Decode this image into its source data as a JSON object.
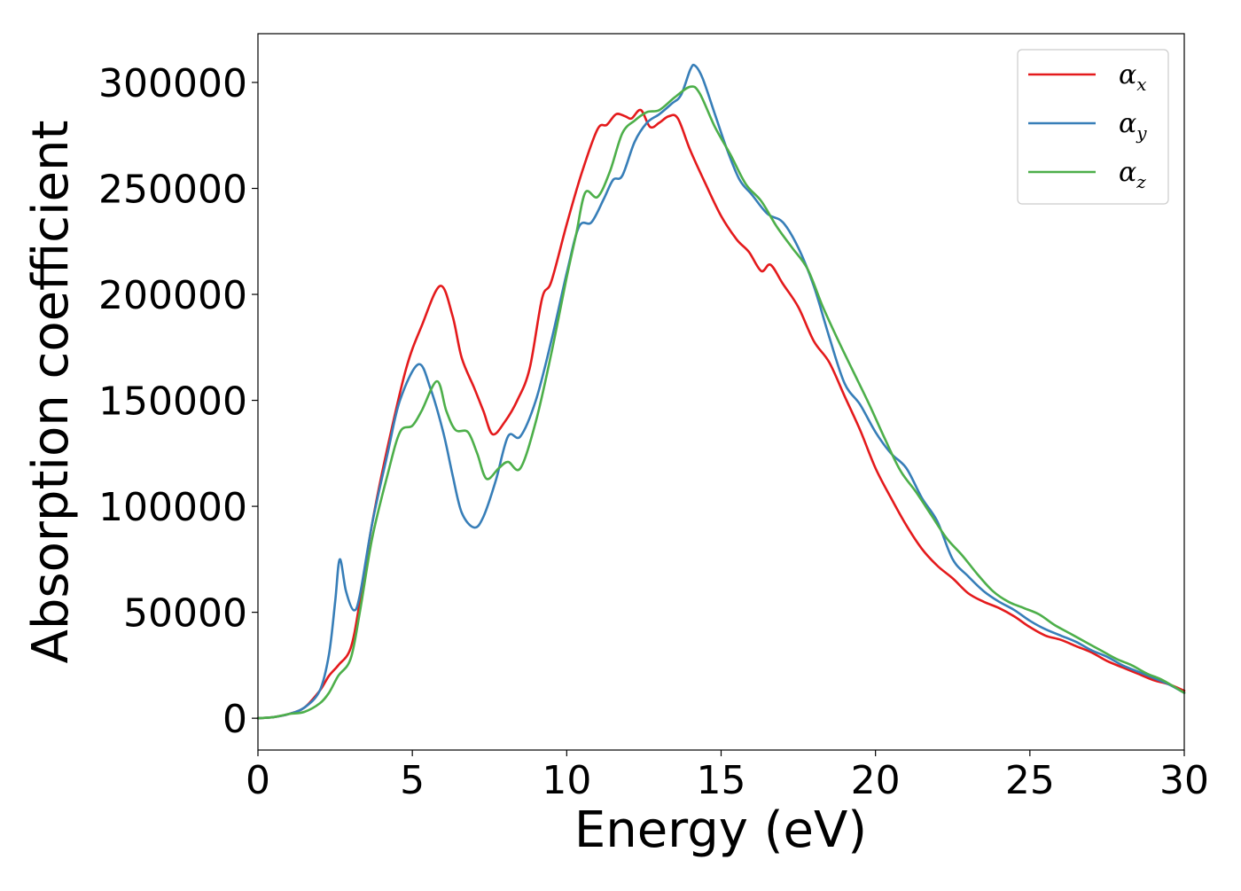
{
  "chart_data": {
    "type": "line",
    "title": "",
    "xlabel": "Energy (eV)",
    "ylabel": "Absorption coefficient",
    "xlim": [
      0,
      30
    ],
    "ylim": [
      -15000,
      323000
    ],
    "x_ticks": [
      0,
      5,
      10,
      15,
      20,
      25,
      30
    ],
    "y_ticks": [
      0,
      50000,
      100000,
      150000,
      200000,
      250000,
      300000
    ],
    "grid": false,
    "legend_position": "top-right",
    "series": [
      {
        "name": "α_x",
        "legend_main": "α",
        "legend_sub": "x",
        "color": "#e41a1c",
        "points": [
          [
            0,
            0
          ],
          [
            0.5,
            500
          ],
          [
            1.0,
            2000
          ],
          [
            1.5,
            5000
          ],
          [
            2.0,
            13000
          ],
          [
            2.3,
            20000
          ],
          [
            2.6,
            25000
          ],
          [
            3.0,
            33000
          ],
          [
            3.3,
            55000
          ],
          [
            3.7,
            92000
          ],
          [
            4.2,
            128000
          ],
          [
            4.8,
            165000
          ],
          [
            5.3,
            185000
          ],
          [
            5.9,
            204000
          ],
          [
            6.3,
            190000
          ],
          [
            6.6,
            170000
          ],
          [
            7.0,
            156000
          ],
          [
            7.3,
            145000
          ],
          [
            7.6,
            134000
          ],
          [
            8.0,
            140000
          ],
          [
            8.4,
            150000
          ],
          [
            8.8,
            165000
          ],
          [
            9.2,
            198000
          ],
          [
            9.5,
            206000
          ],
          [
            10.0,
            233000
          ],
          [
            10.5,
            258000
          ],
          [
            11.0,
            278000
          ],
          [
            11.3,
            280000
          ],
          [
            11.6,
            285000
          ],
          [
            11.9,
            284000
          ],
          [
            12.1,
            283000
          ],
          [
            12.4,
            287000
          ],
          [
            12.7,
            279000
          ],
          [
            13.0,
            281000
          ],
          [
            13.3,
            284000
          ],
          [
            13.6,
            283000
          ],
          [
            14.0,
            268000
          ],
          [
            14.5,
            252000
          ],
          [
            15.0,
            237000
          ],
          [
            15.5,
            226000
          ],
          [
            15.9,
            220000
          ],
          [
            16.3,
            211000
          ],
          [
            16.6,
            214000
          ],
          [
            17.0,
            205000
          ],
          [
            17.5,
            194000
          ],
          [
            18.0,
            178000
          ],
          [
            18.5,
            168000
          ],
          [
            19.0,
            152000
          ],
          [
            19.5,
            136000
          ],
          [
            20.0,
            118000
          ],
          [
            20.5,
            104000
          ],
          [
            21.0,
            91000
          ],
          [
            21.5,
            80000
          ],
          [
            22.0,
            72000
          ],
          [
            22.5,
            66000
          ],
          [
            23.0,
            59000
          ],
          [
            23.5,
            55000
          ],
          [
            24.0,
            52000
          ],
          [
            24.5,
            48000
          ],
          [
            25.0,
            43000
          ],
          [
            25.5,
            39000
          ],
          [
            26.0,
            37000
          ],
          [
            26.5,
            34000
          ],
          [
            27.0,
            31000
          ],
          [
            27.5,
            27000
          ],
          [
            28.0,
            24000
          ],
          [
            28.5,
            21000
          ],
          [
            29.0,
            18000
          ],
          [
            29.5,
            16000
          ],
          [
            30.0,
            13000
          ]
        ]
      },
      {
        "name": "α_y",
        "legend_main": "α",
        "legend_sub": "y",
        "color": "#377eb8",
        "points": [
          [
            0,
            0
          ],
          [
            0.5,
            500
          ],
          [
            1.0,
            2000
          ],
          [
            1.5,
            5000
          ],
          [
            2.0,
            13000
          ],
          [
            2.3,
            30000
          ],
          [
            2.5,
            55000
          ],
          [
            2.65,
            75000
          ],
          [
            2.85,
            60000
          ],
          [
            3.1,
            51000
          ],
          [
            3.3,
            58000
          ],
          [
            3.7,
            92000
          ],
          [
            4.2,
            125000
          ],
          [
            4.6,
            150000
          ],
          [
            5.2,
            167000
          ],
          [
            5.6,
            155000
          ],
          [
            6.0,
            135000
          ],
          [
            6.3,
            115000
          ],
          [
            6.6,
            97000
          ],
          [
            7.0,
            90000
          ],
          [
            7.3,
            95000
          ],
          [
            7.7,
            112000
          ],
          [
            8.1,
            133000
          ],
          [
            8.5,
            133000
          ],
          [
            9.0,
            150000
          ],
          [
            9.5,
            178000
          ],
          [
            10.0,
            210000
          ],
          [
            10.4,
            232000
          ],
          [
            10.8,
            234000
          ],
          [
            11.2,
            245000
          ],
          [
            11.5,
            254000
          ],
          [
            11.8,
            256000
          ],
          [
            12.2,
            272000
          ],
          [
            12.6,
            281000
          ],
          [
            13.0,
            285000
          ],
          [
            13.4,
            290000
          ],
          [
            13.7,
            294000
          ],
          [
            14.0,
            306000
          ],
          [
            14.15,
            308000
          ],
          [
            14.4,
            302000
          ],
          [
            14.8,
            285000
          ],
          [
            15.2,
            268000
          ],
          [
            15.6,
            254000
          ],
          [
            16.0,
            247000
          ],
          [
            16.5,
            238000
          ],
          [
            17.0,
            234000
          ],
          [
            17.5,
            222000
          ],
          [
            18.0,
            204000
          ],
          [
            18.5,
            180000
          ],
          [
            19.0,
            158000
          ],
          [
            19.5,
            148000
          ],
          [
            20.0,
            135000
          ],
          [
            20.5,
            125000
          ],
          [
            21.0,
            118000
          ],
          [
            21.5,
            104000
          ],
          [
            22.0,
            93000
          ],
          [
            22.5,
            75000
          ],
          [
            23.0,
            67000
          ],
          [
            23.5,
            60000
          ],
          [
            24.0,
            55000
          ],
          [
            24.5,
            51000
          ],
          [
            25.0,
            46000
          ],
          [
            25.5,
            42000
          ],
          [
            26.0,
            39000
          ],
          [
            26.5,
            36000
          ],
          [
            27.0,
            32000
          ],
          [
            27.5,
            29000
          ],
          [
            28.0,
            25000
          ],
          [
            28.5,
            22000
          ],
          [
            29.0,
            19000
          ],
          [
            29.5,
            16000
          ],
          [
            30.0,
            12000
          ]
        ]
      },
      {
        "name": "α_z",
        "legend_main": "α",
        "legend_sub": "z",
        "color": "#4daf4a",
        "points": [
          [
            0,
            0
          ],
          [
            0.5,
            500
          ],
          [
            1.0,
            2000
          ],
          [
            1.5,
            3000
          ],
          [
            2.0,
            7000
          ],
          [
            2.3,
            12000
          ],
          [
            2.6,
            20000
          ],
          [
            3.0,
            28000
          ],
          [
            3.3,
            50000
          ],
          [
            3.7,
            85000
          ],
          [
            4.2,
            115000
          ],
          [
            4.6,
            135000
          ],
          [
            5.0,
            138000
          ],
          [
            5.3,
            145000
          ],
          [
            5.8,
            159000
          ],
          [
            6.1,
            145000
          ],
          [
            6.4,
            136000
          ],
          [
            6.8,
            135000
          ],
          [
            7.1,
            125000
          ],
          [
            7.4,
            113000
          ],
          [
            7.8,
            118000
          ],
          [
            8.1,
            121000
          ],
          [
            8.5,
            118000
          ],
          [
            9.0,
            140000
          ],
          [
            9.5,
            172000
          ],
          [
            10.0,
            208000
          ],
          [
            10.3,
            228000
          ],
          [
            10.6,
            248000
          ],
          [
            11.0,
            246000
          ],
          [
            11.4,
            258000
          ],
          [
            11.8,
            276000
          ],
          [
            12.2,
            282000
          ],
          [
            12.6,
            286000
          ],
          [
            13.0,
            287000
          ],
          [
            13.5,
            293000
          ],
          [
            14.0,
            298000
          ],
          [
            14.3,
            295000
          ],
          [
            14.8,
            279000
          ],
          [
            15.3,
            266000
          ],
          [
            15.8,
            252000
          ],
          [
            16.3,
            244000
          ],
          [
            16.8,
            232000
          ],
          [
            17.3,
            222000
          ],
          [
            17.8,
            212000
          ],
          [
            18.3,
            194000
          ],
          [
            18.8,
            178000
          ],
          [
            19.3,
            163000
          ],
          [
            19.8,
            148000
          ],
          [
            20.3,
            132000
          ],
          [
            20.8,
            117000
          ],
          [
            21.3,
            107000
          ],
          [
            21.8,
            96000
          ],
          [
            22.3,
            85000
          ],
          [
            22.8,
            77000
          ],
          [
            23.3,
            68000
          ],
          [
            23.8,
            60000
          ],
          [
            24.3,
            55000
          ],
          [
            24.8,
            52000
          ],
          [
            25.3,
            49000
          ],
          [
            25.8,
            44000
          ],
          [
            26.3,
            40000
          ],
          [
            26.8,
            36000
          ],
          [
            27.3,
            32000
          ],
          [
            27.8,
            28000
          ],
          [
            28.3,
            25000
          ],
          [
            28.8,
            21000
          ],
          [
            29.3,
            18000
          ],
          [
            30.0,
            12000
          ]
        ]
      }
    ]
  }
}
